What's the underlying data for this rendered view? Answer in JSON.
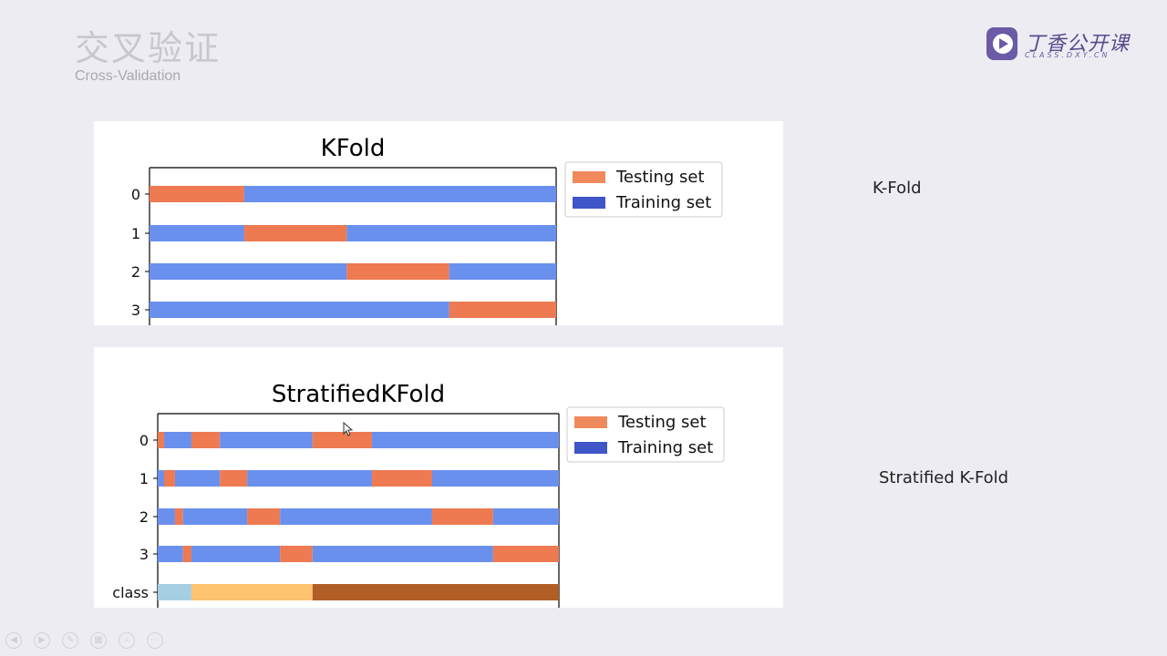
{
  "header": {
    "title_cn": "交叉验证",
    "title_en": "Cross-Validation"
  },
  "logo": {
    "name": "丁香公开课",
    "sub": "CLASS.DXY.CN",
    "color": "#6b5aa6"
  },
  "side_labels": {
    "kfold": "K-Fold",
    "stratified": "Stratified K-Fold"
  },
  "colors": {
    "testing": "#ee7a52",
    "training": "#6a90ee",
    "legend_testing": "#f08a5d",
    "legend_training": "#3f55c8",
    "class_colors": [
      "#a6cee3",
      "#fdc36f",
      "#b15e26"
    ]
  },
  "chart_data": [
    {
      "type": "bar",
      "title": "KFold",
      "legend": [
        "Testing set",
        "Training set"
      ],
      "legend_placement": "outside-top-right",
      "rows": [
        {
          "label": "0",
          "segments": [
            {
              "set": "test",
              "from": 0,
              "to": 0.233
            },
            {
              "set": "train",
              "from": 0.233,
              "to": 1
            }
          ]
        },
        {
          "label": "1",
          "segments": [
            {
              "set": "train",
              "from": 0,
              "to": 0.233
            },
            {
              "set": "test",
              "from": 0.233,
              "to": 0.485
            },
            {
              "set": "train",
              "from": 0.485,
              "to": 1
            }
          ]
        },
        {
          "label": "2",
          "segments": [
            {
              "set": "train",
              "from": 0,
              "to": 0.485
            },
            {
              "set": "test",
              "from": 0.485,
              "to": 0.737
            },
            {
              "set": "train",
              "from": 0.737,
              "to": 1
            }
          ]
        },
        {
          "label": "3",
          "segments": [
            {
              "set": "train",
              "from": 0,
              "to": 0.737
            },
            {
              "set": "test",
              "from": 0.737,
              "to": 1
            }
          ]
        }
      ]
    },
    {
      "type": "bar",
      "title": "StratifiedKFold",
      "legend": [
        "Testing set",
        "Training set"
      ],
      "legend_placement": "outside-top-right",
      "rows": [
        {
          "label": "0",
          "segments": [
            {
              "set": "test",
              "from": 0,
              "to": 0.016
            },
            {
              "set": "train",
              "from": 0.016,
              "to": 0.084
            },
            {
              "set": "test",
              "from": 0.084,
              "to": 0.155
            },
            {
              "set": "train",
              "from": 0.155,
              "to": 0.386
            },
            {
              "set": "test",
              "from": 0.386,
              "to": 0.534
            },
            {
              "set": "train",
              "from": 0.534,
              "to": 1
            }
          ]
        },
        {
          "label": "1",
          "segments": [
            {
              "set": "train",
              "from": 0,
              "to": 0.016
            },
            {
              "set": "test",
              "from": 0.016,
              "to": 0.043
            },
            {
              "set": "train",
              "from": 0.043,
              "to": 0.155
            },
            {
              "set": "test",
              "from": 0.155,
              "to": 0.223
            },
            {
              "set": "train",
              "from": 0.223,
              "to": 0.534
            },
            {
              "set": "test",
              "from": 0.534,
              "to": 0.684
            },
            {
              "set": "train",
              "from": 0.684,
              "to": 1
            }
          ]
        },
        {
          "label": "2",
          "segments": [
            {
              "set": "train",
              "from": 0,
              "to": 0.043
            },
            {
              "set": "test",
              "from": 0.043,
              "to": 0.063
            },
            {
              "set": "train",
              "from": 0.063,
              "to": 0.223
            },
            {
              "set": "test",
              "from": 0.223,
              "to": 0.305
            },
            {
              "set": "train",
              "from": 0.305,
              "to": 0.684
            },
            {
              "set": "test",
              "from": 0.684,
              "to": 0.836
            },
            {
              "set": "train",
              "from": 0.836,
              "to": 1
            }
          ]
        },
        {
          "label": "3",
          "segments": [
            {
              "set": "train",
              "from": 0,
              "to": 0.063
            },
            {
              "set": "test",
              "from": 0.063,
              "to": 0.084
            },
            {
              "set": "train",
              "from": 0.084,
              "to": 0.305
            },
            {
              "set": "test",
              "from": 0.305,
              "to": 0.386
            },
            {
              "set": "train",
              "from": 0.386,
              "to": 0.836
            },
            {
              "set": "test",
              "from": 0.836,
              "to": 1
            }
          ]
        },
        {
          "label": "class",
          "segments": [
            {
              "set": "class0",
              "from": 0,
              "to": 0.084
            },
            {
              "set": "class1",
              "from": 0.084,
              "to": 0.386
            },
            {
              "set": "class2",
              "from": 0.386,
              "to": 1
            }
          ]
        }
      ]
    }
  ],
  "nav_icons": [
    "prev-icon",
    "next-icon",
    "pen-icon",
    "slides-icon",
    "zoom-icon",
    "more-icon"
  ]
}
